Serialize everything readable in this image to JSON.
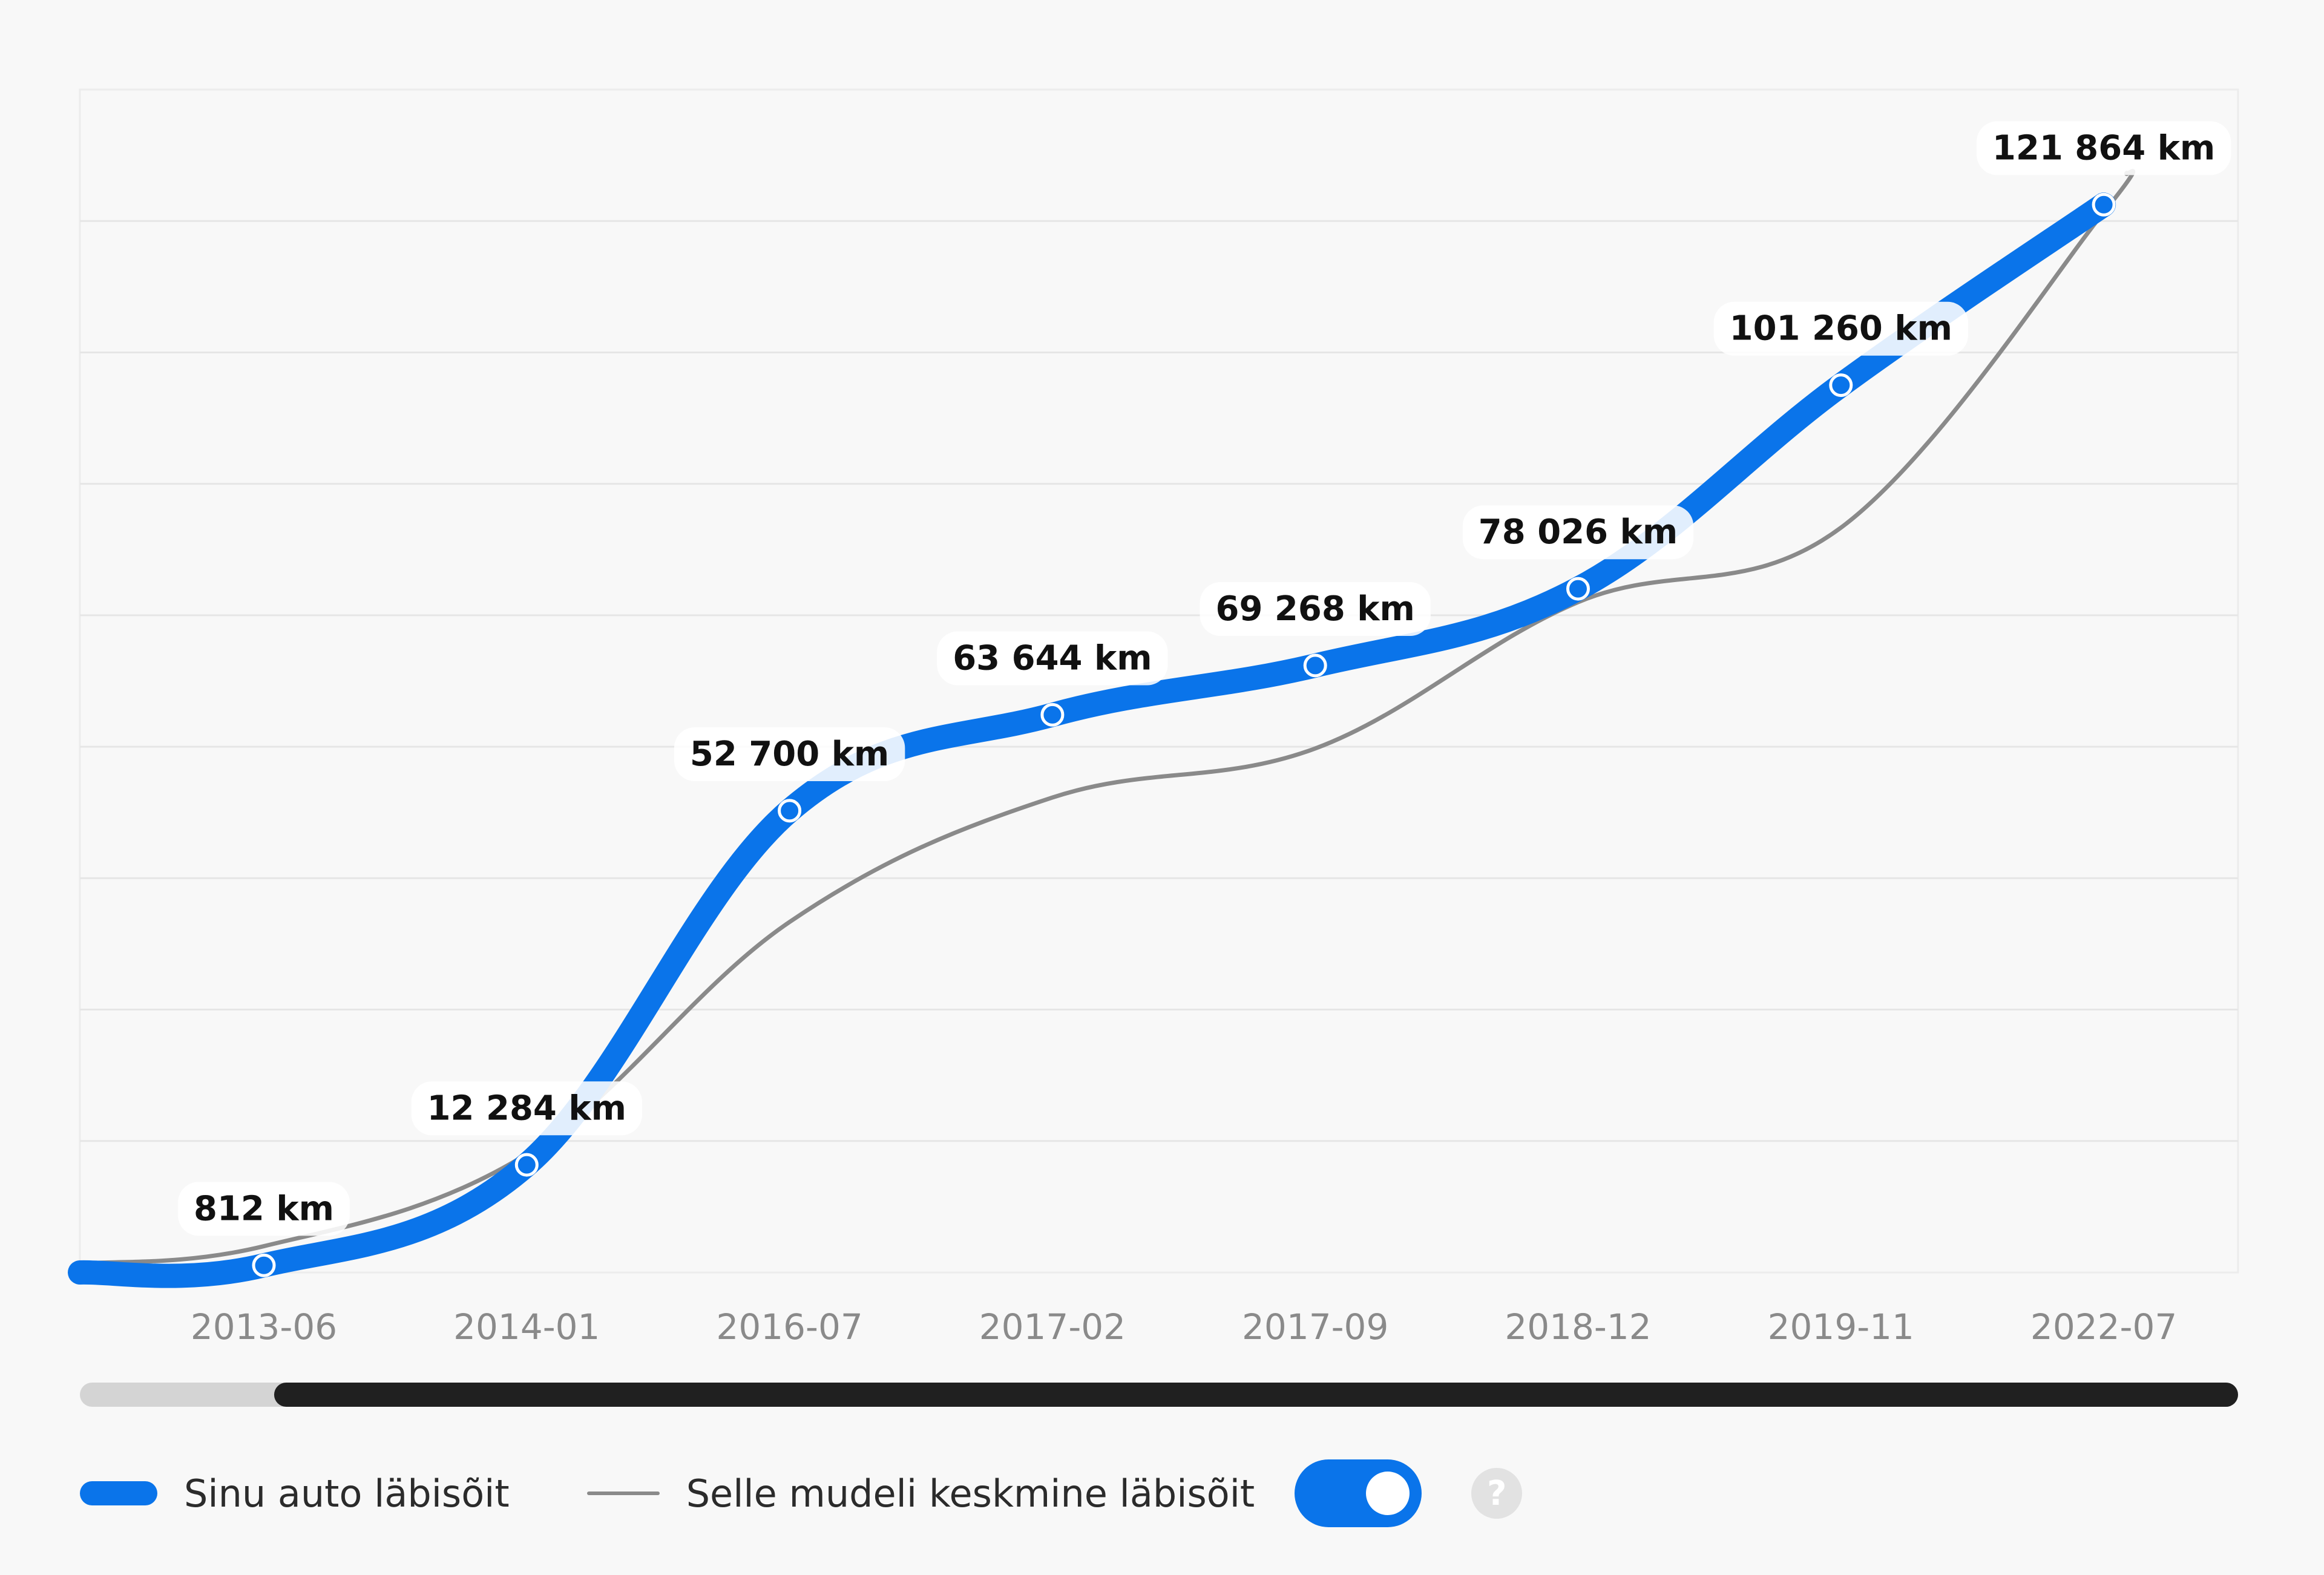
{
  "colors": {
    "accent": "#0a74ea",
    "average": "#8a8a8a",
    "scroll_track": "#d4d4d4",
    "scroll_thumb": "#202020",
    "grid": "#e6e6e6"
  },
  "chart_data": {
    "type": "line",
    "title": "",
    "xlabel": "",
    "ylabel": "",
    "x": [
      "2013-06",
      "2014-01",
      "2016-07",
      "2017-02",
      "2017-09",
      "2018-12",
      "2019-11",
      "2022-07"
    ],
    "ylim": [
      0,
      135000
    ],
    "grid": true,
    "series": [
      {
        "name": "Sinu auto läbisõit",
        "values": [
          812,
          12284,
          52700,
          63644,
          69268,
          78026,
          101260,
          121864
        ],
        "data_labels": [
          "812 km",
          "12 284 km",
          "52 700 km",
          "63 644 km",
          "69 268 km",
          "78 026 km",
          "101 260 km",
          "121 864 km"
        ],
        "start_value": 0,
        "style": "thick"
      },
      {
        "name": "Selle mudeli keskmine läbisõit",
        "values": [
          3000,
          13500,
          40000,
          54200,
          59800,
          76500,
          85000,
          121000
        ],
        "start_value": 1000,
        "end_value": 125500,
        "style": "thin"
      }
    ],
    "legend_position": "bottom-left"
  },
  "legend": {
    "own_label": "Sinu auto läbisõit",
    "average_label": "Selle mudeli keskmine läbisõit",
    "average_toggle_on": true,
    "help_icon": "question-mark-icon",
    "help_glyph": "?"
  },
  "scrollbar": {
    "visible_fraction_start": 0.09,
    "visible_fraction_end": 1.0
  }
}
